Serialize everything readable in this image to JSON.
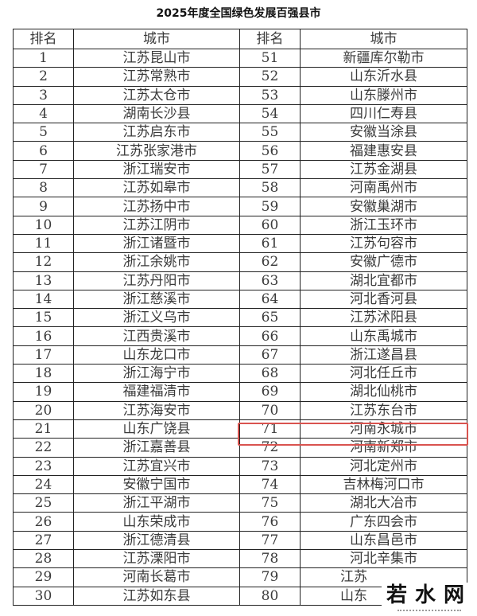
{
  "title": "2025年度全国绿色发展百强县市",
  "headers": [
    "排名",
    "城市",
    "排名",
    "城市"
  ],
  "rows": [
    [
      "1",
      "江苏昆山市",
      "51",
      "新疆库尔勒市"
    ],
    [
      "2",
      "江苏常熟市",
      "52",
      "山东沂水县"
    ],
    [
      "3",
      "江苏太仓市",
      "53",
      "山东滕州市"
    ],
    [
      "4",
      "湖南长沙县",
      "54",
      "四川仁寿县"
    ],
    [
      "5",
      "江苏启东市",
      "55",
      "安徽当涂县"
    ],
    [
      "6",
      "江苏张家港市",
      "56",
      "福建惠安县"
    ],
    [
      "7",
      "浙江瑞安市",
      "57",
      "江苏金湖县"
    ],
    [
      "8",
      "江苏如皋市",
      "58",
      "河南禹州市"
    ],
    [
      "9",
      "江苏扬中市",
      "59",
      "安徽巢湖市"
    ],
    [
      "10",
      "江苏江阴市",
      "60",
      "浙江玉环市"
    ],
    [
      "11",
      "浙江诸暨市",
      "61",
      "江苏句容市"
    ],
    [
      "12",
      "浙江余姚市",
      "62",
      "安徽广德市"
    ],
    [
      "13",
      "江苏丹阳市",
      "63",
      "湖北宜都市"
    ],
    [
      "14",
      "浙江慈溪市",
      "64",
      "河北香河县"
    ],
    [
      "15",
      "浙江义乌市",
      "65",
      "江苏沭阳县"
    ],
    [
      "16",
      "江西贵溪市",
      "66",
      "山东禹城市"
    ],
    [
      "17",
      "山东龙口市",
      "67",
      "浙江遂昌县"
    ],
    [
      "18",
      "浙江海宁市",
      "68",
      "河北任丘市"
    ],
    [
      "19",
      "福建福清市",
      "69",
      "湖北仙桃市"
    ],
    [
      "20",
      "江苏海安市",
      "70",
      "江苏东台市"
    ],
    [
      "21",
      "山东广饶县",
      "71",
      "河南永城市"
    ],
    [
      "22",
      "浙江嘉善县",
      "72",
      "河南新郑市"
    ],
    [
      "23",
      "江苏宜兴市",
      "73",
      "河北定州市"
    ],
    [
      "24",
      "安徽宁国市",
      "74",
      "吉林梅河口市"
    ],
    [
      "25",
      "浙江平湖市",
      "75",
      "湖北大冶市"
    ],
    [
      "26",
      "山东荣成市",
      "76",
      "广东四会市"
    ],
    [
      "27",
      "浙江德清县",
      "77",
      "山东昌邑市"
    ],
    [
      "28",
      "江苏溧阳市",
      "78",
      "河北辛集市"
    ],
    [
      "29",
      "河南长葛市",
      "79",
      "江苏"
    ],
    [
      "30",
      "江苏如东县",
      "80",
      "山东"
    ]
  ],
  "highlight_color": "#d9534f",
  "watermark": "若水网"
}
